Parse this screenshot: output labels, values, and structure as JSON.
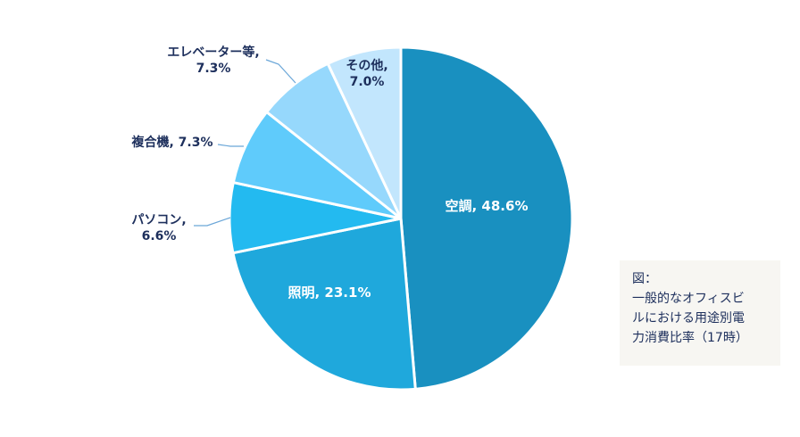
{
  "chart_data": {
    "type": "pie",
    "title": "",
    "slices": [
      {
        "label": "空調, 48.6%",
        "category": "空調",
        "value": 48.6,
        "color": "#1990c0"
      },
      {
        "label": "照明, 23.1%",
        "category": "照明",
        "value": 23.1,
        "color": "#1fa8dc"
      },
      {
        "label": "パソコン,\n6.6%",
        "category": "パソコン",
        "value": 6.6,
        "color": "#23baf0"
      },
      {
        "label": "複合機, 7.3%",
        "category": "複合機",
        "value": 7.3,
        "color": "#5fcbfb"
      },
      {
        "label": "エレベーター等,\n7.3%",
        "category": "エレベーター等",
        "value": 7.3,
        "color": "#96d8fc"
      },
      {
        "label": "その他,\n7.0%",
        "category": "その他",
        "value": 7.0,
        "color": "#c2e6fd"
      }
    ]
  },
  "caption": {
    "lines": [
      "図：",
      "一般的なオフィスビ",
      "ルにおける用途別電",
      "力消費比率（17時）"
    ]
  }
}
